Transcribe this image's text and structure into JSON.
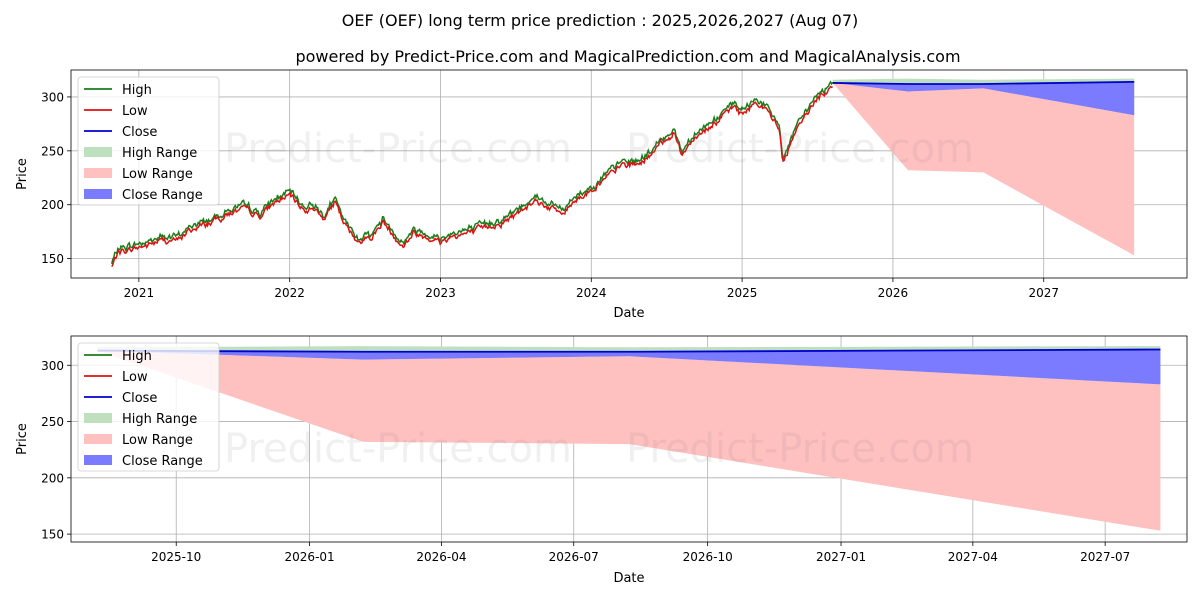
{
  "title": "OEF (OEF) long term price prediction : 2025,2026,2027 (Aug 07)",
  "subtitle": "powered by Predict-Price.com and MagicalPrediction.com and MagicalAnalysis.com",
  "watermark": "Predict-Price.com",
  "colors": {
    "high": "#1a7d1a",
    "low": "#dd1111",
    "close": "#0000cc",
    "high_range": "#bfe0bf",
    "low_range": "#ffc0c0",
    "close_range": "#7b7bff"
  },
  "chart_data": [
    {
      "id": "top",
      "type": "line",
      "xlabel": "Date",
      "ylabel": "Price",
      "grid": true,
      "legend_position": "top-left",
      "legend": [
        "High",
        "Low",
        "Close",
        "High Range",
        "Low Range",
        "Close Range"
      ],
      "xlim": [
        2020.55,
        2027.95
      ],
      "ylim": [
        132,
        325
      ],
      "x_ticks": [
        2021,
        2022,
        2023,
        2024,
        2025,
        2026,
        2027
      ],
      "x_tick_labels": [
        "2021",
        "2022",
        "2023",
        "2024",
        "2025",
        "2026",
        "2027"
      ],
      "y_ticks": [
        150,
        200,
        250,
        300
      ],
      "y_tick_labels": [
        "150",
        "200",
        "250",
        "300"
      ],
      "history_anchors": [
        [
          2020.82,
          143
        ],
        [
          2020.86,
          157
        ],
        [
          2020.95,
          160
        ],
        [
          2021.05,
          163
        ],
        [
          2021.15,
          168
        ],
        [
          2021.25,
          168
        ],
        [
          2021.35,
          178
        ],
        [
          2021.5,
          186
        ],
        [
          2021.6,
          193
        ],
        [
          2021.7,
          197
        ],
        [
          2021.8,
          190
        ],
        [
          2021.9,
          203
        ],
        [
          2022.0,
          210
        ],
        [
          2022.05,
          203
        ],
        [
          2022.1,
          195
        ],
        [
          2022.15,
          200
        ],
        [
          2022.22,
          188
        ],
        [
          2022.3,
          203
        ],
        [
          2022.36,
          183
        ],
        [
          2022.45,
          167
        ],
        [
          2022.55,
          172
        ],
        [
          2022.62,
          185
        ],
        [
          2022.68,
          175
        ],
        [
          2022.75,
          162
        ],
        [
          2022.82,
          175
        ],
        [
          2022.9,
          172
        ],
        [
          2023.0,
          166
        ],
        [
          2023.08,
          172
        ],
        [
          2023.2,
          175
        ],
        [
          2023.3,
          180
        ],
        [
          2023.42,
          185
        ],
        [
          2023.55,
          197
        ],
        [
          2023.62,
          207
        ],
        [
          2023.7,
          200
        ],
        [
          2023.82,
          193
        ],
        [
          2023.88,
          205
        ],
        [
          2024.0,
          214
        ],
        [
          2024.1,
          226
        ],
        [
          2024.2,
          238
        ],
        [
          2024.3,
          238
        ],
        [
          2024.4,
          248
        ],
        [
          2024.5,
          263
        ],
        [
          2024.55,
          268
        ],
        [
          2024.6,
          247
        ],
        [
          2024.68,
          264
        ],
        [
          2024.75,
          270
        ],
        [
          2024.85,
          280
        ],
        [
          2024.95,
          292
        ],
        [
          2025.0,
          285
        ],
        [
          2025.1,
          297
        ],
        [
          2025.18,
          285
        ],
        [
          2025.25,
          270
        ],
        [
          2025.27,
          240
        ],
        [
          2025.33,
          260
        ],
        [
          2025.42,
          285
        ],
        [
          2025.5,
          300
        ],
        [
          2025.56,
          306
        ],
        [
          2025.6,
          313
        ]
      ],
      "forecast": {
        "x": [
          2025.6,
          2026.1,
          2026.6,
          2027.6
        ],
        "high_upper": [
          316,
          317,
          316,
          317
        ],
        "close": [
          313,
          312,
          312,
          314
        ],
        "close_lower": [
          313,
          305,
          308,
          283
        ],
        "low_lower": [
          313,
          232,
          230,
          153
        ]
      }
    },
    {
      "id": "bottom",
      "type": "line",
      "xlabel": "Date",
      "ylabel": "Price",
      "grid": true,
      "legend_position": "top-left",
      "legend": [
        "High",
        "Low",
        "Close",
        "High Range",
        "Low Range",
        "Close Range"
      ],
      "xlim": [
        2025.55,
        2027.65
      ],
      "ylim": [
        143,
        326
      ],
      "x_ticks": [
        2025.748,
        2025.999,
        2026.247,
        2026.496,
        2026.748,
        2026.999,
        2027.247,
        2027.496
      ],
      "x_tick_labels": [
        "2025-10",
        "2026-01",
        "2026-04",
        "2026-07",
        "2026-10",
        "2027-01",
        "2027-04",
        "2027-07"
      ],
      "y_ticks": [
        150,
        200,
        250,
        300
      ],
      "y_tick_labels": [
        "150",
        "200",
        "250",
        "300"
      ],
      "forecast": {
        "x": [
          2025.6,
          2026.1,
          2026.6,
          2027.6
        ],
        "high_upper": [
          316,
          317,
          316,
          317
        ],
        "close": [
          313,
          312,
          312,
          314
        ],
        "close_lower": [
          313,
          305,
          308,
          283
        ],
        "low_lower": [
          313,
          232,
          230,
          153
        ]
      }
    }
  ]
}
